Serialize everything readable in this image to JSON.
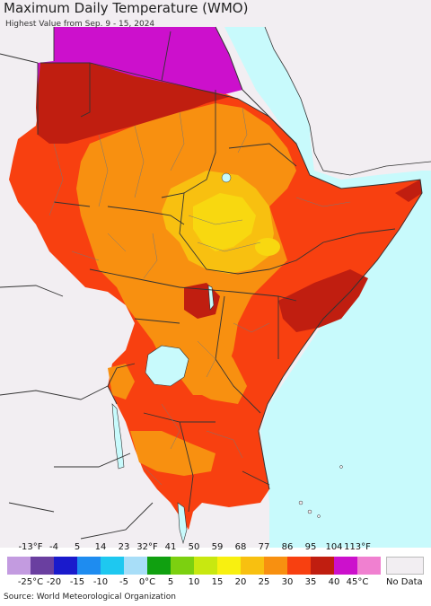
{
  "header": {
    "title": "Maximum Daily Temperature (WMO)",
    "subtitle": "Highest Value from Sep. 9 - 15, 2024"
  },
  "legend": {
    "fahrenheit_labels": [
      "-13°F",
      "-4",
      "5",
      "14",
      "23",
      "32°F",
      "41",
      "50",
      "59",
      "68",
      "77",
      "86",
      "95",
      "104",
      "113°F"
    ],
    "celsius_labels": [
      "-25°C",
      "-20",
      "-15",
      "-10",
      "-5",
      "0°C",
      "5",
      "10",
      "15",
      "20",
      "25",
      "30",
      "35",
      "40",
      "45°C"
    ],
    "colors": [
      "#c39be0",
      "#6a3fa0",
      "#1a1acc",
      "#1e8cf0",
      "#1ec8f0",
      "#a8def8",
      "#10a010",
      "#7cd010",
      "#c8e810",
      "#f8f010",
      "#f8c010",
      "#f89010",
      "#f84010",
      "#c01e10",
      "#cc10cc",
      "#f080d0"
    ],
    "no_data_label": "No Data",
    "no_data_color": "#f2eef2"
  },
  "map": {
    "ocean_color": "#c8fafc",
    "outside_land_color": "#f2eef2",
    "border_color": "#333333",
    "region_colors": {
      "magenta": "#cc10cc",
      "dark_red": "#c01e10",
      "red_orange": "#f84010",
      "orange": "#f89010",
      "light_orange": "#f8c010",
      "yellow": "#f8d810",
      "lake": "#c8fafc"
    }
  },
  "footer": {
    "source": "Source: World Meteorological Organization"
  }
}
